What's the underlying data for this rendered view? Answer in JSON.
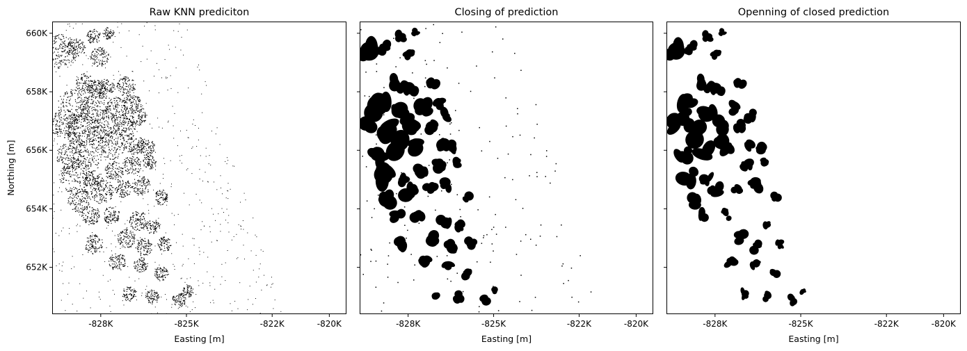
{
  "chart_data": [
    {
      "type": "heatmap",
      "title": "Raw KNN prediciton",
      "xlabel": "Easting [m]",
      "ylabel": "Northing [m]",
      "xlim": [
        -829700,
        -819400
      ],
      "ylim": [
        650400,
        660400
      ],
      "xticks": [
        -828000,
        -825000,
        -822000,
        -820000
      ],
      "xtick_labels": [
        "-828K",
        "-825K",
        "-822K",
        "-820K"
      ],
      "yticks": [
        660000,
        658000,
        656000,
        654000,
        652000
      ],
      "ytick_labels": [
        "660K",
        "658K",
        "656K",
        "654K",
        "652K"
      ],
      "colormap": [
        "#ffffff",
        "#000000"
      ],
      "pattern": "speckle"
    },
    {
      "type": "heatmap",
      "title": "Closing of prediction",
      "xlabel": "Easting [m]",
      "ylabel": "",
      "xlim": [
        -829700,
        -819400
      ],
      "ylim": [
        650400,
        660400
      ],
      "xticks": [
        -828000,
        -825000,
        -822000,
        -820000
      ],
      "xtick_labels": [
        "-828K",
        "-825K",
        "-822K",
        "-820K"
      ],
      "yticks": [
        660000,
        658000,
        656000,
        654000,
        652000
      ],
      "ytick_labels": [],
      "colormap": [
        "#ffffff",
        "#000000"
      ],
      "pattern": "closed"
    },
    {
      "type": "heatmap",
      "title": "Openning of closed prediction",
      "xlabel": "Easting [m]",
      "ylabel": "",
      "xlim": [
        -829700,
        -819400
      ],
      "ylim": [
        650400,
        660400
      ],
      "xticks": [
        -828000,
        -825000,
        -822000,
        -820000
      ],
      "xtick_labels": [
        "-828K",
        "-825K",
        "-822K",
        "-820K"
      ],
      "yticks": [
        660000,
        658000,
        656000,
        654000,
        652000
      ],
      "ytick_labels": [],
      "colormap": [
        "#ffffff",
        "#000000"
      ],
      "pattern": "opened"
    }
  ]
}
